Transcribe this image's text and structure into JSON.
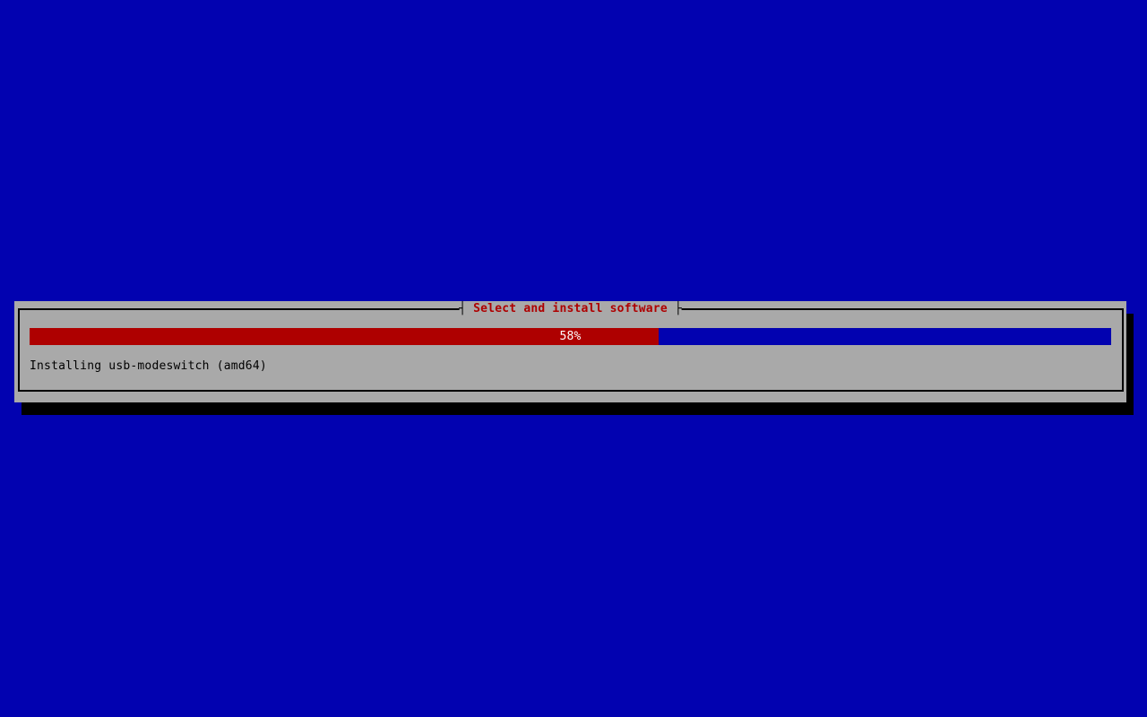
{
  "colors": {
    "blue": "#0202b0",
    "gray": "#a9a9a9",
    "red": "#ae0000",
    "black": "#000000",
    "white": "#ffffff"
  },
  "dialog": {
    "title": "Select and install software",
    "tick_left": "┤",
    "tick_right": "├",
    "progress": {
      "percent": 58,
      "fill_percent": 58.2,
      "label": "58%"
    },
    "status_text": "Installing usb-modeswitch (amd64)"
  }
}
